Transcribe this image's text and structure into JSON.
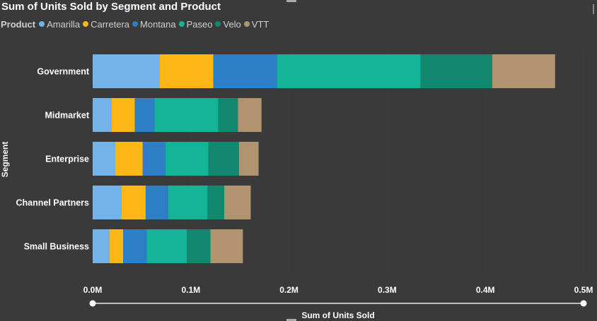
{
  "chart_data": {
    "type": "bar",
    "orientation": "horizontal",
    "stacked": true,
    "title": "Sum of Units Sold by Segment and Product",
    "legend_title": "Product",
    "legend_position": "top-left",
    "categories": [
      "Government",
      "Midmarket",
      "Enterprise",
      "Channel Partners",
      "Small Business"
    ],
    "series": [
      {
        "name": "Amarilla",
        "color": "#73b3e7",
        "values": [
          68000,
          19000,
          23000,
          29000,
          17000
        ]
      },
      {
        "name": "Carretera",
        "color": "#fcb714",
        "values": [
          55000,
          24000,
          28000,
          25000,
          14000
        ]
      },
      {
        "name": "Montana",
        "color": "#2d7ec5",
        "values": [
          65000,
          20000,
          23000,
          23000,
          24000
        ]
      },
      {
        "name": "Paseo",
        "color": "#13b497",
        "values": [
          146000,
          65000,
          44000,
          40000,
          41000
        ]
      },
      {
        "name": "Velo",
        "color": "#11896e",
        "values": [
          73000,
          20000,
          31000,
          17000,
          24000
        ]
      },
      {
        "name": "VTT",
        "color": "#b09470",
        "values": [
          64000,
          24000,
          20000,
          27000,
          33000
        ]
      }
    ],
    "xlabel": "Sum of Units Sold",
    "ylabel": "Segment",
    "xlim": [
      0,
      500000
    ],
    "xticks": [
      {
        "value": 0,
        "label": "0.0M"
      },
      {
        "value": 100000,
        "label": "0.1M"
      },
      {
        "value": 200000,
        "label": "0.2M"
      },
      {
        "value": 300000,
        "label": "0.3M"
      },
      {
        "value": 400000,
        "label": "0.4M"
      },
      {
        "value": 500000,
        "label": "0.5M"
      }
    ],
    "grid": true
  }
}
